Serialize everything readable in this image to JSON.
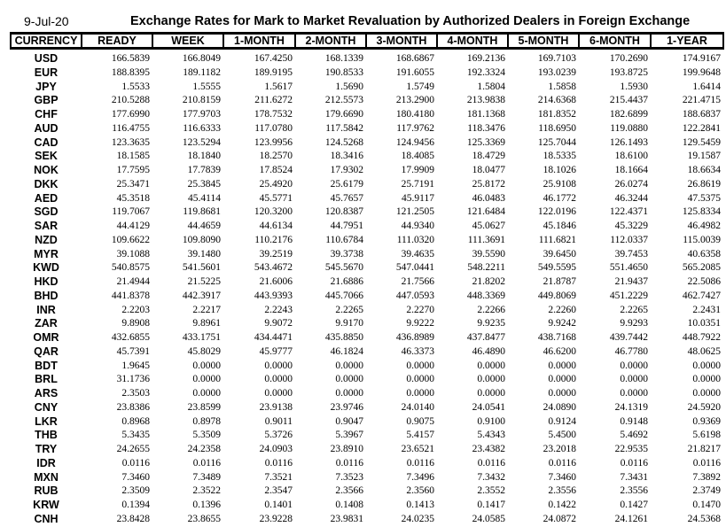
{
  "date": "9-Jul-20",
  "title": "Exchange Rates for Mark to Market Revaluation by Authorized Dealers in Foreign Exchange",
  "columns": [
    "CURRENCY",
    "READY",
    "WEEK",
    "1-MONTH",
    "2-MONTH",
    "3-MONTH",
    "4-MONTH",
    "5-MONTH",
    "6-MONTH",
    "1-YEAR"
  ],
  "rows": [
    [
      "USD",
      "166.5839",
      "166.8049",
      "167.4250",
      "168.1339",
      "168.6867",
      "169.2136",
      "169.7103",
      "170.2690",
      "174.9167"
    ],
    [
      "EUR",
      "188.8395",
      "189.1182",
      "189.9195",
      "190.8533",
      "191.6055",
      "192.3324",
      "193.0239",
      "193.8725",
      "199.9648"
    ],
    [
      "JPY",
      "1.5533",
      "1.5555",
      "1.5617",
      "1.5690",
      "1.5749",
      "1.5804",
      "1.5858",
      "1.5930",
      "1.6414"
    ],
    [
      "GBP",
      "210.5288",
      "210.8159",
      "211.6272",
      "212.5573",
      "213.2900",
      "213.9838",
      "214.6368",
      "215.4437",
      "221.4715"
    ],
    [
      "CHF",
      "177.6990",
      "177.9703",
      "178.7532",
      "179.6690",
      "180.4180",
      "181.1368",
      "181.8352",
      "182.6899",
      "188.6837"
    ],
    [
      "AUD",
      "116.4755",
      "116.6333",
      "117.0780",
      "117.5842",
      "117.9762",
      "118.3476",
      "118.6950",
      "119.0880",
      "122.2841"
    ],
    [
      "CAD",
      "123.3635",
      "123.5294",
      "123.9956",
      "124.5268",
      "124.9456",
      "125.3369",
      "125.7044",
      "126.1493",
      "129.5459"
    ],
    [
      "SEK",
      "18.1585",
      "18.1840",
      "18.2570",
      "18.3416",
      "18.4085",
      "18.4729",
      "18.5335",
      "18.6100",
      "19.1587"
    ],
    [
      "NOK",
      "17.7595",
      "17.7839",
      "17.8524",
      "17.9302",
      "17.9909",
      "18.0477",
      "18.1026",
      "18.1664",
      "18.6634"
    ],
    [
      "DKK",
      "25.3471",
      "25.3845",
      "25.4920",
      "25.6179",
      "25.7191",
      "25.8172",
      "25.9108",
      "26.0274",
      "26.8619"
    ],
    [
      "AED",
      "45.3518",
      "45.4114",
      "45.5771",
      "45.7657",
      "45.9117",
      "46.0483",
      "46.1772",
      "46.3244",
      "47.5375"
    ],
    [
      "SGD",
      "119.7067",
      "119.8681",
      "120.3200",
      "120.8387",
      "121.2505",
      "121.6484",
      "122.0196",
      "122.4371",
      "125.8334"
    ],
    [
      "SAR",
      "44.4129",
      "44.4659",
      "44.6134",
      "44.7951",
      "44.9340",
      "45.0627",
      "45.1846",
      "45.3229",
      "46.4982"
    ],
    [
      "NZD",
      "109.6622",
      "109.8090",
      "110.2176",
      "110.6784",
      "111.0320",
      "111.3691",
      "111.6821",
      "112.0337",
      "115.0039"
    ],
    [
      "MYR",
      "39.1088",
      "39.1480",
      "39.2519",
      "39.3738",
      "39.4635",
      "39.5590",
      "39.6450",
      "39.7453",
      "40.6358"
    ],
    [
      "KWD",
      "540.8575",
      "541.5601",
      "543.4672",
      "545.5670",
      "547.0441",
      "548.2211",
      "549.5595",
      "551.4650",
      "565.2085"
    ],
    [
      "HKD",
      "21.4944",
      "21.5225",
      "21.6006",
      "21.6886",
      "21.7566",
      "21.8202",
      "21.8787",
      "21.9437",
      "22.5086"
    ],
    [
      "BHD",
      "441.8378",
      "442.3917",
      "443.9393",
      "445.7066",
      "447.0593",
      "448.3369",
      "449.8069",
      "451.2229",
      "462.7427"
    ],
    [
      "INR",
      "2.2203",
      "2.2217",
      "2.2243",
      "2.2265",
      "2.2270",
      "2.2266",
      "2.2260",
      "2.2265",
      "2.2431"
    ],
    [
      "ZAR",
      "9.8908",
      "9.8961",
      "9.9072",
      "9.9170",
      "9.9222",
      "9.9235",
      "9.9242",
      "9.9293",
      "10.0351"
    ],
    [
      "OMR",
      "432.6855",
      "433.1751",
      "434.4471",
      "435.8850",
      "436.8989",
      "437.8477",
      "438.7168",
      "439.7442",
      "448.7922"
    ],
    [
      "QAR",
      "45.7391",
      "45.8029",
      "45.9777",
      "46.1824",
      "46.3373",
      "46.4890",
      "46.6200",
      "46.7780",
      "48.0625"
    ],
    [
      "BDT",
      "1.9645",
      "0.0000",
      "0.0000",
      "0.0000",
      "0.0000",
      "0.0000",
      "0.0000",
      "0.0000",
      "0.0000"
    ],
    [
      "BRL",
      "31.1736",
      "0.0000",
      "0.0000",
      "0.0000",
      "0.0000",
      "0.0000",
      "0.0000",
      "0.0000",
      "0.0000"
    ],
    [
      "ARS",
      "2.3503",
      "0.0000",
      "0.0000",
      "0.0000",
      "0.0000",
      "0.0000",
      "0.0000",
      "0.0000",
      "0.0000"
    ],
    [
      "CNY",
      "23.8386",
      "23.8599",
      "23.9138",
      "23.9746",
      "24.0140",
      "24.0541",
      "24.0890",
      "24.1319",
      "24.5920"
    ],
    [
      "LKR",
      "0.8968",
      "0.8978",
      "0.9011",
      "0.9047",
      "0.9075",
      "0.9100",
      "0.9124",
      "0.9148",
      "0.9369"
    ],
    [
      "THB",
      "5.3435",
      "5.3509",
      "5.3726",
      "5.3967",
      "5.4157",
      "5.4343",
      "5.4500",
      "5.4692",
      "5.6198"
    ],
    [
      "TRY",
      "24.2655",
      "24.2358",
      "24.0903",
      "23.8910",
      "23.6521",
      "23.4382",
      "23.2018",
      "22.9535",
      "21.8217"
    ],
    [
      "IDR",
      "0.0116",
      "0.0116",
      "0.0116",
      "0.0116",
      "0.0116",
      "0.0116",
      "0.0116",
      "0.0116",
      "0.0116"
    ],
    [
      "MXN",
      "7.3460",
      "7.3489",
      "7.3521",
      "7.3523",
      "7.3496",
      "7.3432",
      "7.3460",
      "7.3431",
      "7.3892"
    ],
    [
      "RUB",
      "2.3509",
      "2.3522",
      "2.3547",
      "2.3566",
      "2.3560",
      "2.3552",
      "2.3556",
      "2.3556",
      "2.3749"
    ],
    [
      "KRW",
      "0.1394",
      "0.1396",
      "0.1401",
      "0.1408",
      "0.1413",
      "0.1417",
      "0.1422",
      "0.1427",
      "0.1470"
    ],
    [
      "CNH",
      "23.8428",
      "23.8655",
      "23.9228",
      "23.9831",
      "24.0235",
      "24.0585",
      "24.0872",
      "24.1261",
      "24.5368"
    ]
  ]
}
